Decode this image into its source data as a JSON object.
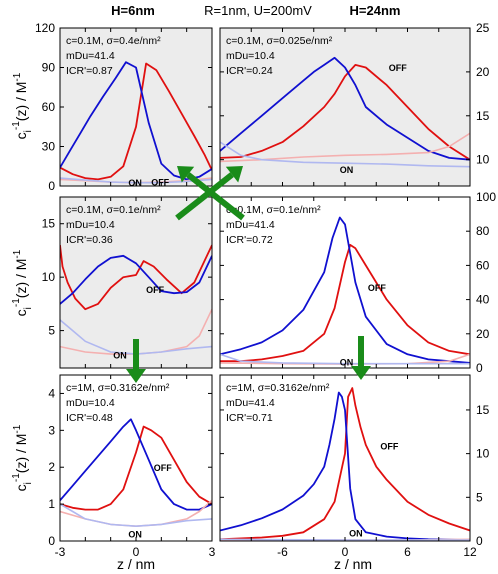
{
  "figure": {
    "header": {
      "left": "H=6nm",
      "center": "R=1nm, U=200mV",
      "right": "H=24nm"
    },
    "ylabel": "c_i^-1(z) / M^-1",
    "xlabel": "z / nm"
  },
  "colors": {
    "off": "#e01010",
    "on_dark": "#1010d0",
    "on_light_red": "#f4b0b0",
    "on_light_blue": "#b0b8f0",
    "shade": "#ececec",
    "arrow": "#1a8c1a"
  },
  "chart_data": [
    {
      "id": "top-left",
      "type": "line",
      "xlim": [
        -3,
        3
      ],
      "ylim": [
        0,
        120
      ],
      "yticks": [
        0,
        30,
        60,
        90,
        120
      ],
      "yaxis_side": "left",
      "shaded": true,
      "annotations": [
        "c=0.1M, σ=0.4e/nm²",
        "mDu=41.4",
        "ICR'=0.87"
      ],
      "labels": {
        "off": "OFF",
        "on": "ON"
      },
      "series": [
        {
          "role": "off",
          "x": [
            -3,
            -2.5,
            -2,
            -1.5,
            -1,
            -0.5,
            0,
            0.4,
            0.8,
            1.3,
            1.8,
            2.3,
            2.7,
            3
          ],
          "y": [
            14,
            9,
            6,
            5,
            7,
            15,
            45,
            93,
            88,
            72,
            55,
            38,
            24,
            12
          ]
        },
        {
          "role": "blue",
          "x": [
            -3,
            -2.6,
            -2.2,
            -1.8,
            -1.3,
            -0.8,
            -0.4,
            0,
            0.5,
            1,
            1.5,
            2,
            2.5,
            3
          ],
          "y": [
            14,
            27,
            40,
            53,
            68,
            82,
            94,
            90,
            48,
            17,
            8,
            5,
            7,
            13
          ]
        },
        {
          "role": "faint_red",
          "x": [
            -3,
            -2,
            -1,
            0,
            1,
            2,
            3
          ],
          "y": [
            5,
            4,
            3,
            2.5,
            3,
            4,
            6
          ]
        },
        {
          "role": "faint_blue",
          "x": [
            -3,
            -2,
            -1,
            0,
            1,
            2,
            3
          ],
          "y": [
            6,
            4.5,
            3,
            2.5,
            2.5,
            3.5,
            5
          ]
        }
      ]
    },
    {
      "id": "top-right",
      "type": "line",
      "xlim": [
        -12,
        12
      ],
      "ylim": [
        7,
        25
      ],
      "yticks": [
        10,
        15,
        20,
        25
      ],
      "yaxis_side": "right",
      "shaded": true,
      "annotations": [
        "c=0.1M, σ=0.025e/nm²",
        "mDu=10.4",
        "ICR'=0.24"
      ],
      "labels": {
        "off": "OFF",
        "on": "ON"
      },
      "series": [
        {
          "role": "off",
          "x": [
            -12,
            -10,
            -8,
            -6,
            -4,
            -2,
            -1,
            0,
            1,
            2,
            4,
            6,
            8,
            10,
            12
          ],
          "y": [
            10.2,
            10.3,
            11,
            12,
            13.8,
            16,
            17.5,
            19.5,
            20.8,
            20.5,
            18.5,
            16,
            13.5,
            11.5,
            10
          ]
        },
        {
          "role": "blue",
          "x": [
            -12,
            -10,
            -8,
            -6,
            -4,
            -3,
            -2,
            -1,
            0,
            1,
            2,
            4,
            6,
            8,
            10,
            12
          ],
          "y": [
            11,
            13,
            15,
            17,
            19,
            20,
            20.8,
            21.6,
            20.5,
            18.5,
            16,
            14,
            12.5,
            11,
            10.2,
            10
          ]
        },
        {
          "role": "faint_red",
          "x": [
            -12,
            -8,
            -4,
            0,
            4,
            8,
            10,
            12
          ],
          "y": [
            9.8,
            10,
            10.3,
            10.5,
            10.6,
            10.8,
            11.5,
            13
          ]
        },
        {
          "role": "faint_blue",
          "x": [
            -12,
            -10,
            -8,
            -4,
            0,
            4,
            8,
            12
          ],
          "y": [
            12,
            10.5,
            10,
            9.7,
            9.6,
            9.5,
            9.3,
            9.2
          ]
        }
      ]
    },
    {
      "id": "mid-left",
      "type": "line",
      "xlim": [
        -3,
        3
      ],
      "ylim": [
        1.5,
        17.5
      ],
      "yticks": [
        5,
        10,
        15
      ],
      "yaxis_side": "left",
      "shaded": true,
      "annotations": [
        "c=0.1M, σ=0.1e/nm²",
        "mDu=10.4",
        "ICR'=0.36"
      ],
      "labels": {
        "off": "OFF",
        "on": "ON"
      },
      "series": [
        {
          "role": "off",
          "x": [
            -3,
            -2.9,
            -2.7,
            -2.4,
            -2,
            -1.5,
            -1,
            -0.5,
            0,
            0.3,
            0.7,
            1.2,
            1.8,
            2.3,
            2.7,
            3
          ],
          "y": [
            13,
            11,
            9.5,
            8,
            7,
            7.5,
            9,
            10,
            10.2,
            11.5,
            11,
            9.8,
            8.5,
            9.5,
            11.5,
            13
          ]
        },
        {
          "role": "blue",
          "x": [
            -3,
            -2.5,
            -2,
            -1.5,
            -1,
            -0.5,
            0,
            0.5,
            1,
            1.5,
            2,
            2.5,
            3
          ],
          "y": [
            7.5,
            8.5,
            9.8,
            11,
            11.8,
            12,
            11.3,
            10,
            8.7,
            8.5,
            8.6,
            9.5,
            12
          ]
        },
        {
          "role": "faint_red",
          "x": [
            -3,
            -2,
            -1,
            0,
            1,
            2,
            2.5,
            3
          ],
          "y": [
            3.5,
            3,
            2.8,
            2.8,
            3,
            3.5,
            4.5,
            7
          ]
        },
        {
          "role": "faint_blue",
          "x": [
            -3,
            -2.5,
            -2,
            -1,
            0,
            1,
            2,
            3
          ],
          "y": [
            6,
            5,
            4,
            3,
            2.8,
            3,
            3.3,
            3.5
          ]
        }
      ]
    },
    {
      "id": "mid-right",
      "type": "line",
      "xlim": [
        -12,
        12
      ],
      "ylim": [
        0,
        100
      ],
      "yticks": [
        0,
        20,
        40,
        60,
        80,
        100
      ],
      "yaxis_side": "right",
      "shaded": false,
      "annotations": [
        "c=0.1M, σ=0.1e/nm²",
        "mDu=41.4",
        "ICR'=0.72"
      ],
      "labels": {
        "off": "OFF",
        "on": "ON"
      },
      "series": [
        {
          "role": "off",
          "x": [
            -12,
            -10,
            -8,
            -6,
            -4,
            -2,
            -1,
            0,
            0.5,
            1,
            2,
            4,
            6,
            8,
            10,
            12
          ],
          "y": [
            4,
            4,
            5,
            7,
            10,
            20,
            35,
            62,
            72,
            70,
            60,
            40,
            25,
            15,
            10,
            8
          ]
        },
        {
          "role": "blue",
          "x": [
            -12,
            -10,
            -8,
            -6,
            -4,
            -2,
            -1.2,
            -0.5,
            0,
            1,
            2,
            4,
            6,
            8,
            10,
            12
          ],
          "y": [
            8,
            11,
            15,
            22,
            34,
            56,
            76,
            88,
            84,
            50,
            30,
            14,
            8,
            5,
            4,
            3
          ]
        },
        {
          "role": "faint_red",
          "x": [
            -12,
            -6,
            0,
            6,
            10,
            12
          ],
          "y": [
            3,
            2.5,
            2.3,
            2.5,
            4,
            8
          ]
        },
        {
          "role": "faint_blue",
          "x": [
            -12,
            -10,
            -6,
            0,
            6,
            12
          ],
          "y": [
            8,
            4,
            3,
            2.5,
            2.5,
            2.5
          ]
        }
      ]
    },
    {
      "id": "bottom-left",
      "type": "line",
      "xlim": [
        -3,
        3
      ],
      "ylim": [
        0,
        4.5
      ],
      "yticks": [
        0,
        1,
        2,
        3,
        4
      ],
      "xticks": [
        -3,
        0,
        3
      ],
      "yaxis_side": "left",
      "shaded": false,
      "annotations": [
        "c=1M, σ=0.3162e/nm²",
        "mDu=10.4",
        "ICR'=0.48"
      ],
      "labels": {
        "off": "OFF",
        "on": "ON"
      },
      "series": [
        {
          "role": "off",
          "x": [
            -3,
            -2.5,
            -2,
            -1.5,
            -1,
            -0.5,
            0,
            0.3,
            0.6,
            1,
            1.5,
            2,
            2.5,
            3
          ],
          "y": [
            1.0,
            0.9,
            0.85,
            0.85,
            1.0,
            1.4,
            2.4,
            3.1,
            3.0,
            2.8,
            2.2,
            1.6,
            1.2,
            1.0
          ]
        },
        {
          "role": "blue",
          "x": [
            -3,
            -2.5,
            -2,
            -1.5,
            -1,
            -0.5,
            -0.2,
            0,
            0.5,
            1,
            1.5,
            2,
            2.5,
            3
          ],
          "y": [
            1.1,
            1.5,
            1.9,
            2.3,
            2.7,
            3.1,
            3.3,
            3.0,
            2.2,
            1.4,
            1.0,
            0.85,
            0.85,
            1.0
          ]
        },
        {
          "role": "faint_red",
          "x": [
            -3,
            -2,
            -1,
            0,
            1,
            2,
            2.5,
            3
          ],
          "y": [
            0.8,
            0.6,
            0.45,
            0.4,
            0.45,
            0.6,
            0.8,
            1.1
          ]
        },
        {
          "role": "faint_blue",
          "x": [
            -3,
            -2.5,
            -2,
            -1,
            0,
            1,
            2,
            3
          ],
          "y": [
            1.0,
            0.8,
            0.6,
            0.45,
            0.4,
            0.45,
            0.55,
            0.6
          ]
        }
      ]
    },
    {
      "id": "bottom-right",
      "type": "line",
      "xlim": [
        -12,
        12
      ],
      "ylim": [
        0,
        19
      ],
      "yticks": [
        0,
        5,
        10,
        15
      ],
      "xticks": [
        -6,
        0,
        6,
        12
      ],
      "yaxis_side": "right",
      "shaded": false,
      "annotations": [
        "c=1M, σ=0.3162e/nm²",
        "mDu=41.4",
        "ICR'=0.71"
      ],
      "labels": {
        "off": "OFF",
        "on": "ON"
      },
      "series": [
        {
          "role": "off",
          "x": [
            -12,
            -10,
            -8,
            -6,
            -4,
            -2,
            -1,
            0,
            0.3,
            0.7,
            1,
            1.5,
            2,
            3,
            4,
            6,
            8,
            10,
            12
          ],
          "y": [
            0.2,
            0.3,
            0.4,
            0.6,
            1.0,
            2.5,
            4.5,
            10,
            16.5,
            17.5,
            15.5,
            13,
            11,
            8.5,
            7,
            4.5,
            3,
            2,
            1.2
          ]
        },
        {
          "role": "blue",
          "x": [
            -12,
            -10,
            -8,
            -6,
            -4,
            -3,
            -2,
            -1.5,
            -1,
            -0.6,
            -0.3,
            0,
            0.5,
            1,
            2,
            4,
            6,
            8,
            10,
            12
          ],
          "y": [
            1.2,
            1.8,
            2.6,
            3.6,
            5.2,
            6.5,
            8.5,
            11,
            14,
            17,
            16.5,
            15,
            6,
            2.5,
            1,
            0.5,
            0.3,
            0.2,
            0.15,
            0.1
          ]
        },
        {
          "role": "faint_red",
          "x": [
            -12,
            -6,
            0,
            6,
            12
          ],
          "y": [
            0.1,
            0.1,
            0.1,
            0.1,
            0.2
          ]
        },
        {
          "role": "faint_blue",
          "x": [
            -12,
            -6,
            0,
            6,
            12
          ],
          "y": [
            0.2,
            0.15,
            0.1,
            0.1,
            0.1
          ]
        }
      ]
    }
  ]
}
